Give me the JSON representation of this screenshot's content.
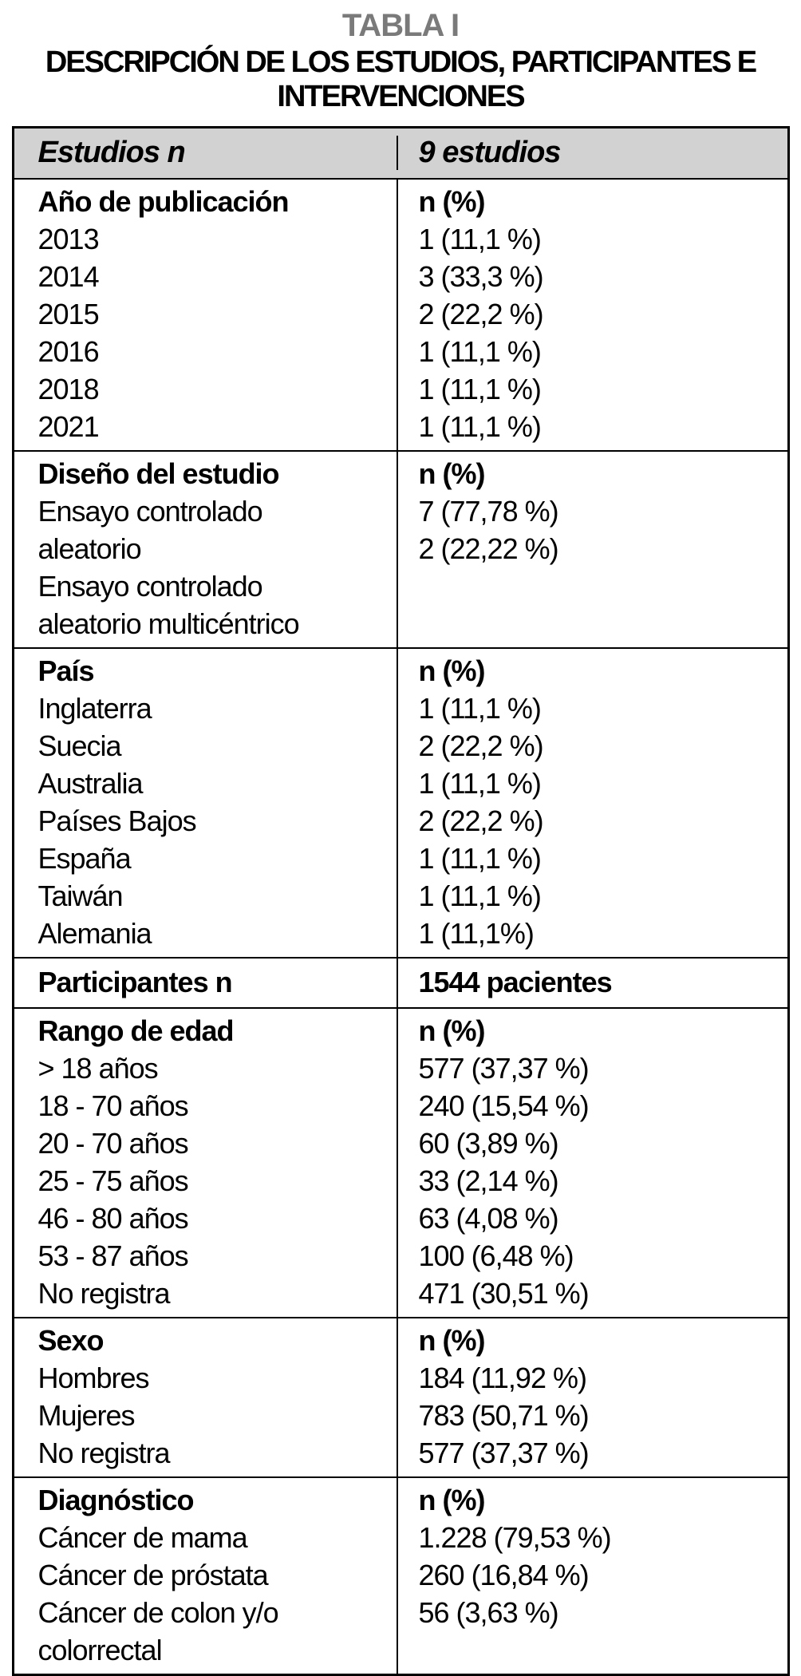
{
  "page": {
    "title": "TABLA I",
    "subtitle_lines": [
      "DESCRIPCIÓN DE LOS ESTUDIOS, PARTICIPANTES E",
      "INTERVENCIONES"
    ]
  },
  "colors": {
    "title_gray": "#7a7a7a",
    "header_bg": "#d2d2d2",
    "border": "#000000"
  },
  "table": {
    "header": {
      "left": "Estudios n",
      "right": "9 estudios"
    },
    "sections": [
      {
        "name": "Año de publicación",
        "left": [
          "Año de publicación",
          "2013",
          "2014",
          "2015",
          "2016",
          "2018",
          "2021"
        ],
        "right": [
          "n (%)",
          "1 (11,1 %)",
          "3 (33,3 %)",
          "2 (22,2 %)",
          "1 (11,1 %)",
          "1 (11,1 %)",
          "1 (11,1 %)"
        ]
      },
      {
        "name": "Diseño del estudio",
        "left": [
          "Diseño del estudio",
          "Ensayo controlado",
          "aleatorio",
          "Ensayo controlado",
          "aleatorio multicéntrico"
        ],
        "right": [
          "n (%)",
          "7 (77,78 %)",
          "2 (22,22 %)"
        ]
      },
      {
        "name": "País",
        "left": [
          "País",
          "Inglaterra",
          "Suecia",
          "Australia",
          "Países Bajos",
          "España",
          "Taiwán",
          "Alemania"
        ],
        "right": [
          "n (%)",
          "1 (11,1 %)",
          "2 (22,2 %)",
          "1 (11,1 %)",
          "2 (22,2 %)",
          "1 (11,1 %)",
          "1 (11,1 %)",
          "1 (11,1%)"
        ]
      },
      {
        "name": "Participantes n",
        "left": [
          "Participantes n"
        ],
        "right": [
          "1544 pacientes"
        ]
      },
      {
        "name": "Rango de edad",
        "left": [
          "Rango de edad",
          "> 18 años",
          "18 - 70 años",
          "20 - 70 años",
          "25 - 75 años",
          "46 - 80 años",
          "53 - 87 años",
          "No registra"
        ],
        "right": [
          "n (%)",
          "577 (37,37 %)",
          "240 (15,54 %)",
          "60 (3,89 %)",
          "33 (2,14 %)",
          "63 (4,08 %)",
          "100 (6,48 %)",
          "471 (30,51 %)"
        ]
      },
      {
        "name": "Sexo",
        "left": [
          "Sexo",
          "Hombres",
          "Mujeres",
          "No registra"
        ],
        "right": [
          "n (%)",
          "184 (11,92 %)",
          "783 (50,71 %)",
          "577 (37,37 %)"
        ]
      },
      {
        "name": "Diagnóstico",
        "left": [
          "Diagnóstico",
          "Cáncer de mama",
          "Cáncer de próstata",
          "Cáncer de colon y/o",
          "colorrectal"
        ],
        "right": [
          "n (%)",
          "1.228 (79,53 %)",
          "260 (16,84 %)",
          "56 (3,63 %)"
        ]
      }
    ]
  }
}
